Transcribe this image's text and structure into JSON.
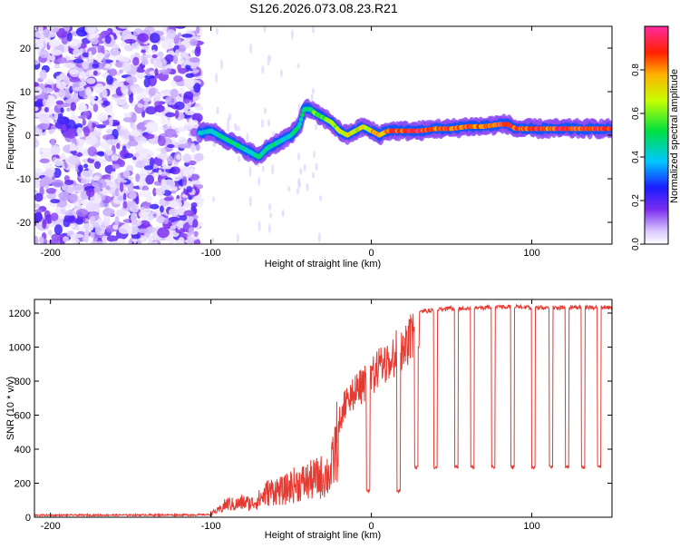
{
  "figure_title": "S126.2026.073.08.23.R21",
  "colors": {
    "snr_line": "#e53a32",
    "axis": "#000000",
    "background": "#ffffff",
    "scatter": "#7a2cf0"
  },
  "chart_data": [
    {
      "type": "heatmap",
      "title": "",
      "xlabel": "Height of straight line (km)",
      "ylabel": "Frequency (Hz)",
      "xlim": [
        -210,
        150
      ],
      "ylim": [
        -25,
        25
      ],
      "x_ticks": [
        -200,
        -100,
        0,
        100
      ],
      "y_ticks": [
        -20,
        -10,
        0,
        10,
        20
      ],
      "colorbar": {
        "label": "Normalized spectral amplitude",
        "range": [
          0,
          1
        ],
        "ticks": [
          0.0,
          0.2,
          0.4,
          0.6,
          0.8
        ],
        "tick_labels": [
          "0.0",
          "0.2",
          "0.4",
          "0.6",
          "0.8"
        ],
        "colormap": "rainbow"
      },
      "noise_region_x": [
        -210,
        -107
      ],
      "frequency_track": {
        "x": [
          -107,
          -100,
          -95,
          -90,
          -85,
          -80,
          -75,
          -70,
          -65,
          -60,
          -55,
          -50,
          -45,
          -42,
          -38,
          -35,
          -30,
          -25,
          -20,
          -15,
          -10,
          -5,
          0,
          5,
          10,
          20,
          30,
          40,
          50,
          60,
          70,
          80,
          85,
          90,
          100,
          110,
          120,
          130,
          140,
          150
        ],
        "y": [
          0.5,
          1,
          0,
          -1,
          -2,
          -3,
          -4,
          -5,
          -3,
          -2,
          -1,
          0,
          2,
          6,
          6,
          5,
          4,
          3,
          1,
          0,
          1,
          2,
          1,
          0,
          1,
          1,
          1,
          1.5,
          1.5,
          2,
          2,
          2.5,
          2.5,
          1.5,
          1.5,
          1.5,
          1.5,
          1.5,
          1.5,
          1.5
        ],
        "amplitude": [
          0.45,
          0.45,
          0.5,
          0.55,
          0.5,
          0.5,
          0.45,
          0.5,
          0.5,
          0.5,
          0.45,
          0.45,
          0.5,
          0.55,
          0.55,
          0.6,
          0.62,
          0.65,
          0.7,
          0.75,
          0.75,
          0.75,
          0.8,
          0.85,
          0.9,
          0.95,
          0.95,
          0.9,
          0.9,
          0.9,
          0.85,
          0.95,
          0.95,
          0.9,
          0.95,
          0.95,
          0.95,
          0.95,
          0.95,
          0.95
        ]
      }
    },
    {
      "type": "line",
      "title": "",
      "xlabel": "Height of straight line (km)",
      "ylabel": "SNR (10 * v/v)",
      "xlim": [
        -210,
        150
      ],
      "ylim": [
        0,
        1280
      ],
      "x_ticks": [
        -200,
        -100,
        0,
        100
      ],
      "y_ticks": [
        0,
        200,
        400,
        600,
        800,
        1000,
        1200
      ],
      "envelope": {
        "x": [
          -210,
          -110,
          -100,
          -95,
          -90,
          -85,
          -80,
          -75,
          -70,
          -65,
          -60,
          -55,
          -50,
          -45,
          -40,
          -35,
          -30,
          -25,
          -20,
          -15,
          -10,
          -5,
          0,
          5,
          10,
          15,
          20,
          25,
          30,
          40,
          50,
          60,
          80,
          100,
          120,
          150
        ],
        "y": [
          20,
          25,
          30,
          50,
          100,
          90,
          110,
          100,
          130,
          180,
          200,
          190,
          230,
          250,
          260,
          280,
          300,
          330,
          650,
          800,
          850,
          880,
          950,
          1000,
          1050,
          1100,
          1150,
          1200,
          1220,
          1230,
          1240,
          1240,
          1250,
          1245,
          1245,
          1245
        ]
      },
      "dips_x": [
        -2,
        17,
        28,
        40,
        53,
        63,
        76,
        88,
        101,
        112,
        122,
        132,
        142
      ],
      "dip_floor": 285
    }
  ]
}
